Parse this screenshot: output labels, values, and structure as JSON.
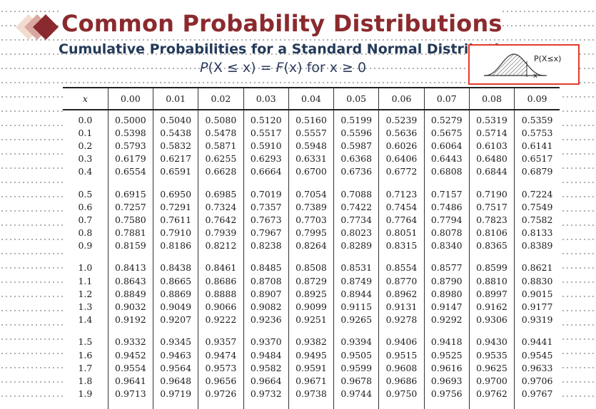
{
  "header": {
    "title": "Common Probability Distributions",
    "subtitle": "Cumulative Probabilities for a Standard Normal Distribution",
    "formula_p": "P",
    "formula_mid": "(X ≤ x) = ",
    "formula_f": "F",
    "formula_end": "(x) for x ≥ 0"
  },
  "curve_inset": {
    "label": "P(X≤x)",
    "x_label": "x",
    "highlight_color": "#e43a2c"
  },
  "colors": {
    "title": "#8b2a2e",
    "subtitle": "#233a58",
    "logo_dark": "#8b2a2e",
    "logo_mid": "#d9a79f",
    "logo_light": "#f1dccf"
  },
  "table": {
    "columns": [
      "x",
      "0.00",
      "0.01",
      "0.02",
      "0.03",
      "0.04",
      "0.05",
      "0.06",
      "0.07",
      "0.08",
      "0.09"
    ],
    "rows": [
      [
        "0.0",
        "0.5000",
        "0.5040",
        "0.5080",
        "0.5120",
        "0.5160",
        "0.5199",
        "0.5239",
        "0.5279",
        "0.5319",
        "0.5359"
      ],
      [
        "0.1",
        "0.5398",
        "0.5438",
        "0.5478",
        "0.5517",
        "0.5557",
        "0.5596",
        "0.5636",
        "0.5675",
        "0.5714",
        "0.5753"
      ],
      [
        "0.2",
        "0.5793",
        "0.5832",
        "0.5871",
        "0.5910",
        "0.5948",
        "0.5987",
        "0.6026",
        "0.6064",
        "0.6103",
        "0.6141"
      ],
      [
        "0.3",
        "0.6179",
        "0.6217",
        "0.6255",
        "0.6293",
        "0.6331",
        "0.6368",
        "0.6406",
        "0.6443",
        "0.6480",
        "0.6517"
      ],
      [
        "0.4",
        "0.6554",
        "0.6591",
        "0.6628",
        "0.6664",
        "0.6700",
        "0.6736",
        "0.6772",
        "0.6808",
        "0.6844",
        "0.6879"
      ],
      [
        "0.5",
        "0.6915",
        "0.6950",
        "0.6985",
        "0.7019",
        "0.7054",
        "0.7088",
        "0.7123",
        "0.7157",
        "0.7190",
        "0.7224"
      ],
      [
        "0.6",
        "0.7257",
        "0.7291",
        "0.7324",
        "0.7357",
        "0.7389",
        "0.7422",
        "0.7454",
        "0.7486",
        "0.7517",
        "0.7549"
      ],
      [
        "0.7",
        "0.7580",
        "0.7611",
        "0.7642",
        "0.7673",
        "0.7703",
        "0.7734",
        "0.7764",
        "0.7794",
        "0.7823",
        "0.7582"
      ],
      [
        "0.8",
        "0.7881",
        "0.7910",
        "0.7939",
        "0.7967",
        "0.7995",
        "0.8023",
        "0.8051",
        "0.8078",
        "0.8106",
        "0.8133"
      ],
      [
        "0.9",
        "0.8159",
        "0.8186",
        "0.8212",
        "0.8238",
        "0.8264",
        "0.8289",
        "0.8315",
        "0.8340",
        "0.8365",
        "0.8389"
      ],
      [
        "1.0",
        "0.8413",
        "0.8438",
        "0.8461",
        "0.8485",
        "0.8508",
        "0.8531",
        "0.8554",
        "0.8577",
        "0.8599",
        "0.8621"
      ],
      [
        "1.1",
        "0.8643",
        "0.8665",
        "0.8686",
        "0.8708",
        "0.8729",
        "0.8749",
        "0.8770",
        "0.8790",
        "0.8810",
        "0.8830"
      ],
      [
        "1.2",
        "0.8849",
        "0.8869",
        "0.8888",
        "0.8907",
        "0.8925",
        "0.8944",
        "0.8962",
        "0.8980",
        "0.8997",
        "0.9015"
      ],
      [
        "1.3",
        "0.9032",
        "0.9049",
        "0.9066",
        "0.9082",
        "0.9099",
        "0.9115",
        "0.9131",
        "0.9147",
        "0.9162",
        "0.9177"
      ],
      [
        "1.4",
        "0.9192",
        "0.9207",
        "0.9222",
        "0.9236",
        "0.9251",
        "0.9265",
        "0.9278",
        "0.9292",
        "0.9306",
        "0.9319"
      ],
      [
        "1.5",
        "0.9332",
        "0.9345",
        "0.9357",
        "0.9370",
        "0.9382",
        "0.9394",
        "0.9406",
        "0.9418",
        "0.9430",
        "0.9441"
      ],
      [
        "1.6",
        "0.9452",
        "0.9463",
        "0.9474",
        "0.9484",
        "0.9495",
        "0.9505",
        "0.9515",
        "0.9525",
        "0.9535",
        "0.9545"
      ],
      [
        "1.7",
        "0.9554",
        "0.9564",
        "0.9573",
        "0.9582",
        "0.9591",
        "0.9599",
        "0.9608",
        "0.9616",
        "0.9625",
        "0.9633"
      ],
      [
        "1.8",
        "0.9641",
        "0.9648",
        "0.9656",
        "0.9664",
        "0.9671",
        "0.9678",
        "0.9686",
        "0.9693",
        "0.9700",
        "0.9706"
      ],
      [
        "1.9",
        "0.9713",
        "0.9719",
        "0.9726",
        "0.9732",
        "0.9738",
        "0.9744",
        "0.9750",
        "0.9756",
        "0.9762",
        "0.9767"
      ]
    ]
  }
}
